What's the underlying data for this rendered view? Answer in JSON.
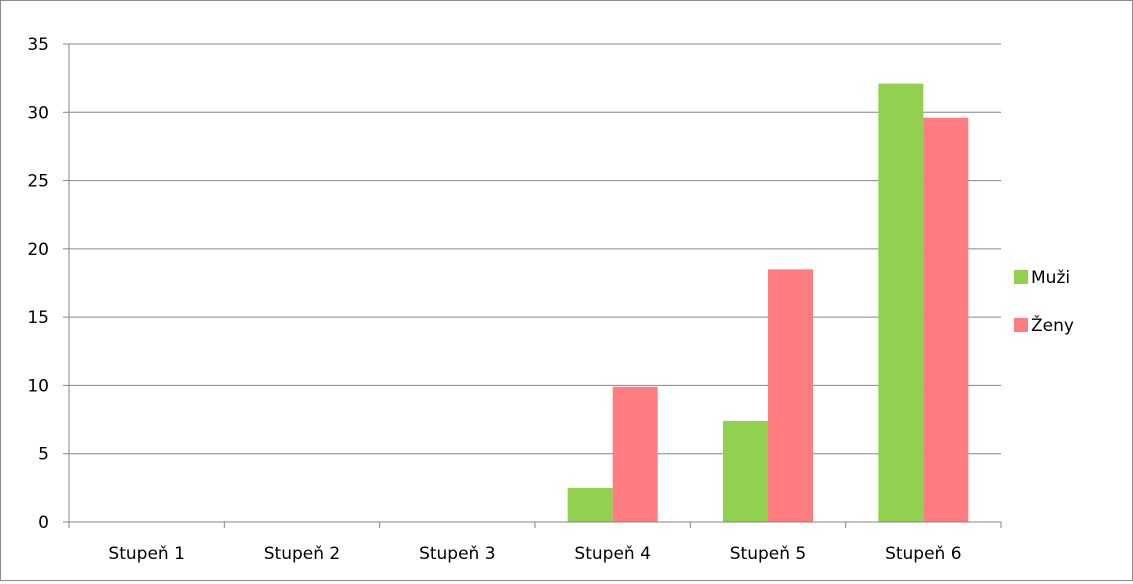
{
  "chart_data": {
    "type": "bar",
    "title": "",
    "xlabel": "",
    "ylabel": "",
    "categories": [
      "Stupeň 1",
      "Stupeň 2",
      "Stupeň 3",
      "Stupeň 4",
      "Stupeň 5",
      "Stupeň 6"
    ],
    "series": [
      {
        "name": "Muži",
        "color": "#92d050",
        "values": [
          0,
          0,
          0,
          2.5,
          7.4,
          32.1
        ]
      },
      {
        "name": "Ženy",
        "color": "#ff7c80",
        "values": [
          0,
          0,
          0,
          9.9,
          18.5,
          29.6
        ]
      }
    ],
    "ylim": [
      0,
      35
    ],
    "yticks": [
      "0",
      "5",
      "10",
      "15",
      "20",
      "25",
      "30",
      "35"
    ],
    "grid": true,
    "legend_position": "right"
  }
}
